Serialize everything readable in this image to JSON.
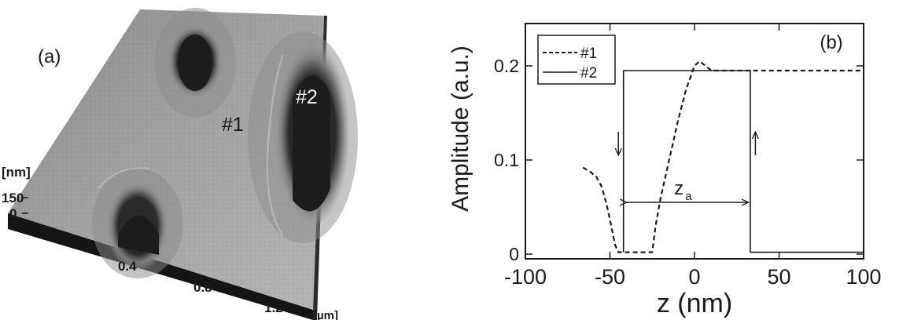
{
  "panel_a": {
    "label": "(a)",
    "markers": [
      "#1",
      "#2"
    ],
    "z_unit": "[nm]",
    "z_ticks": [
      "150",
      "0"
    ],
    "x_ticks": [
      "0.4",
      "0.8",
      "1.2"
    ],
    "x_unit": "[µm]"
  },
  "chart_data": {
    "type": "line",
    "panel_label": "(b)",
    "xlabel": "z (nm)",
    "ylabel": "Amplitude (a.u.)",
    "xlim": [
      -100,
      100
    ],
    "ylim": [
      -0.005,
      0.245
    ],
    "xticks": [
      -100,
      -50,
      0,
      50,
      100
    ],
    "yticks": [
      0,
      0.1,
      0.2
    ],
    "grid": false,
    "legend_position": "top-left",
    "series": [
      {
        "name": "#1",
        "style": "dashed",
        "color": "#1a1a1a",
        "x": [
          -66,
          -62,
          -58,
          -55,
          -53,
          -51,
          -49,
          -47,
          -45,
          -25,
          -23,
          -20,
          -15,
          -10,
          -5,
          0,
          3,
          10,
          30,
          60,
          100
        ],
        "y": [
          0.092,
          0.088,
          0.082,
          0.072,
          0.06,
          0.045,
          0.028,
          0.01,
          0.002,
          0.002,
          0.03,
          0.06,
          0.1,
          0.14,
          0.175,
          0.2,
          0.205,
          0.195,
          0.195,
          0.195,
          0.195
        ]
      },
      {
        "name": "#2",
        "style": "solid",
        "color": "#1a1a1a",
        "x": [
          -42,
          -42,
          33,
          33,
          100
        ],
        "y": [
          0.002,
          0.195,
          0.195,
          0.002,
          0.002
        ]
      }
    ],
    "annotations": {
      "down_arrow_x": -45,
      "up_arrow_x": 36,
      "span_label": "z",
      "span_subscript": "a",
      "span_from": -40,
      "span_to": 32
    }
  }
}
